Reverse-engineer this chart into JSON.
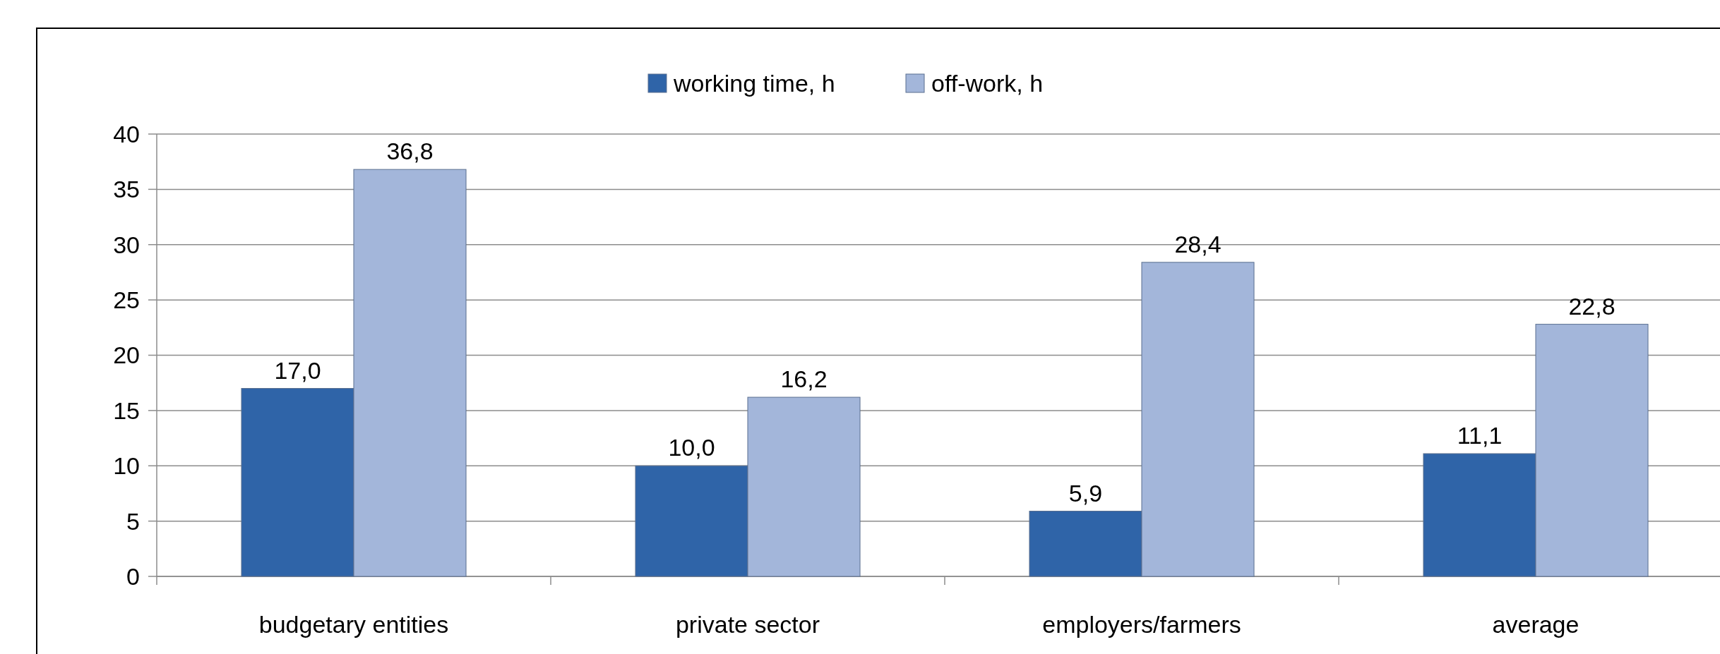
{
  "chart_data": {
    "type": "bar",
    "categories": [
      "budgetary entities",
      "private sector",
      "employers/farmers",
      "average"
    ],
    "series": [
      {
        "name": "working time, h",
        "color": "#2f64a8",
        "values": [
          17.0,
          10.0,
          5.9,
          11.1
        ],
        "value_labels": [
          "17,0",
          "10,0",
          "5,9",
          "11,1"
        ]
      },
      {
        "name": "off-work, h",
        "color": "#a3b6da",
        "values": [
          36.8,
          16.2,
          28.4,
          22.8
        ],
        "value_labels": [
          "36,8",
          "16,2",
          "28,4",
          "22,8"
        ]
      }
    ],
    "ylim": [
      0,
      40
    ],
    "yticks": [
      0,
      5,
      10,
      15,
      20,
      25,
      30,
      35,
      40
    ],
    "grid": "y",
    "legend": "top"
  }
}
